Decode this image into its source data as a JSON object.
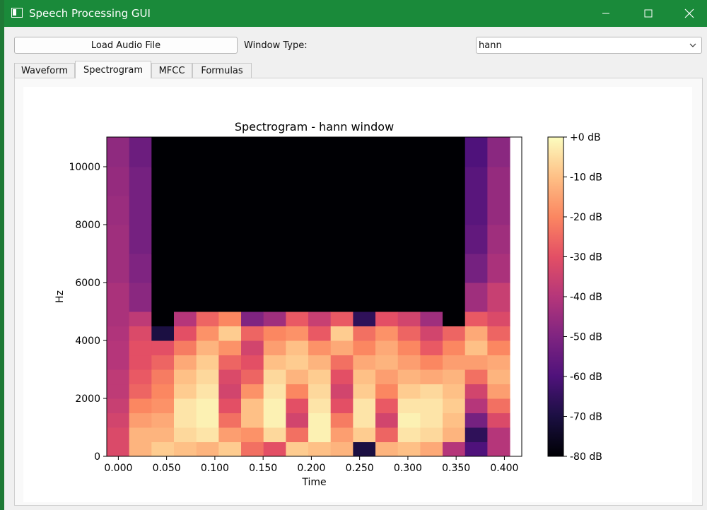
{
  "window": {
    "title": "Speech Processing GUI"
  },
  "toolbar": {
    "load_label": "Load Audio File",
    "window_type_label": "Window Type:",
    "window_type_value": "hann"
  },
  "tabs": [
    {
      "label": "Waveform",
      "active": false
    },
    {
      "label": "Spectrogram",
      "active": true
    },
    {
      "label": "MFCC",
      "active": false
    },
    {
      "label": "Formulas",
      "active": false
    }
  ],
  "chart_data": {
    "type": "heatmap",
    "title": "Spectrogram - hann window",
    "xlabel": "Time",
    "ylabel": "Hz",
    "colormap": "magma",
    "xlim": [
      -0.012,
      0.418
    ],
    "ylim": [
      0,
      11025
    ],
    "x_ticks": [
      "0.000",
      "0.050",
      "0.100",
      "0.150",
      "0.200",
      "0.250",
      "0.300",
      "0.350",
      "0.400"
    ],
    "y_ticks": [
      "0",
      "2000",
      "4000",
      "6000",
      "8000",
      "10000"
    ],
    "colorbar": {
      "range_db": [
        -80,
        0
      ],
      "ticks": [
        "+0 dB",
        "-10 dB",
        "-20 dB",
        "-30 dB",
        "-40 dB",
        "-50 dB",
        "-60 dB",
        "-70 dB",
        "-80 dB"
      ]
    },
    "frame_duration_s": 0.0232,
    "freq_bands_hz": [
      0,
      500,
      1000,
      1500,
      2000,
      2500,
      3000,
      3500,
      4000,
      4500,
      5000,
      6000,
      7000,
      8000,
      9000,
      10000,
      11025
    ],
    "frames_db": [
      [
        -32,
        -32,
        -34,
        -36,
        -38,
        -38,
        -40,
        -40,
        -41,
        -42,
        -42,
        -44,
        -44,
        -45,
        -46,
        -47
      ],
      [
        -12,
        -12,
        -16,
        -20,
        -26,
        -28,
        -30,
        -30,
        -32,
        -38,
        -48,
        -50,
        -52,
        -52,
        -52,
        -54
      ],
      [
        -8,
        -12,
        -14,
        -18,
        -20,
        -22,
        -26,
        -30,
        -70,
        -80,
        -80,
        -80,
        -80,
        -80,
        -80,
        -80
      ],
      [
        -10,
        -6,
        -4,
        -4,
        -8,
        -10,
        -14,
        -22,
        -30,
        -40,
        -80,
        -80,
        -80,
        -80,
        -80,
        -80
      ],
      [
        -12,
        -4,
        -2,
        -2,
        -4,
        -6,
        -8,
        -12,
        -18,
        -26,
        -80,
        -80,
        -80,
        -80,
        -80,
        -80
      ],
      [
        -8,
        -16,
        -24,
        -30,
        -34,
        -32,
        -26,
        -18,
        -8,
        -20,
        -80,
        -80,
        -80,
        -80,
        -80,
        -80
      ],
      [
        -24,
        -18,
        -10,
        -10,
        -18,
        -26,
        -30,
        -34,
        -26,
        -50,
        -80,
        -80,
        -80,
        -80,
        -80,
        -80
      ],
      [
        -30,
        -6,
        -2,
        -2,
        -4,
        -6,
        -10,
        -16,
        -20,
        -44,
        -80,
        -80,
        -80,
        -80,
        -80,
        -80
      ],
      [
        -8,
        -24,
        -34,
        -30,
        -20,
        -12,
        -8,
        -10,
        -18,
        -28,
        -80,
        -80,
        -80,
        -80,
        -80,
        -80
      ],
      [
        -10,
        -2,
        -2,
        -4,
        -6,
        -8,
        -12,
        -18,
        -28,
        -36,
        -80,
        -80,
        -80,
        -80,
        -80,
        -80
      ],
      [
        -12,
        -16,
        -22,
        -30,
        -34,
        -30,
        -24,
        -14,
        -8,
        -28,
        -80,
        -80,
        -80,
        -80,
        -80,
        -80
      ],
      [
        -70,
        -8,
        -4,
        -4,
        -8,
        -10,
        -14,
        -20,
        -24,
        -66,
        -80,
        -80,
        -80,
        -80,
        -80,
        -80
      ],
      [
        -12,
        -26,
        -34,
        -28,
        -20,
        -16,
        -12,
        -14,
        -18,
        -30,
        -80,
        -80,
        -80,
        -80,
        -80,
        -80
      ],
      [
        -10,
        -4,
        -2,
        -4,
        -8,
        -12,
        -16,
        -20,
        -26,
        -34,
        -80,
        -80,
        -80,
        -80,
        -80,
        -80
      ],
      [
        -14,
        -6,
        -4,
        -4,
        -6,
        -14,
        -20,
        -28,
        -34,
        -44,
        -80,
        -80,
        -80,
        -80,
        -80,
        -80
      ],
      [
        -40,
        -12,
        -10,
        -8,
        -10,
        -12,
        -16,
        -20,
        -26,
        -80,
        -80,
        -80,
        -80,
        -80,
        -80,
        -80
      ],
      [
        -60,
        -66,
        -52,
        -40,
        -34,
        -24,
        -16,
        -10,
        -14,
        -28,
        -44,
        -52,
        -56,
        -58,
        -58,
        -60
      ],
      [
        -40,
        -40,
        -32,
        -24,
        -16,
        -12,
        -14,
        -20,
        -26,
        -32,
        -36,
        -42,
        -44,
        -46,
        -46,
        -48
      ]
    ]
  }
}
